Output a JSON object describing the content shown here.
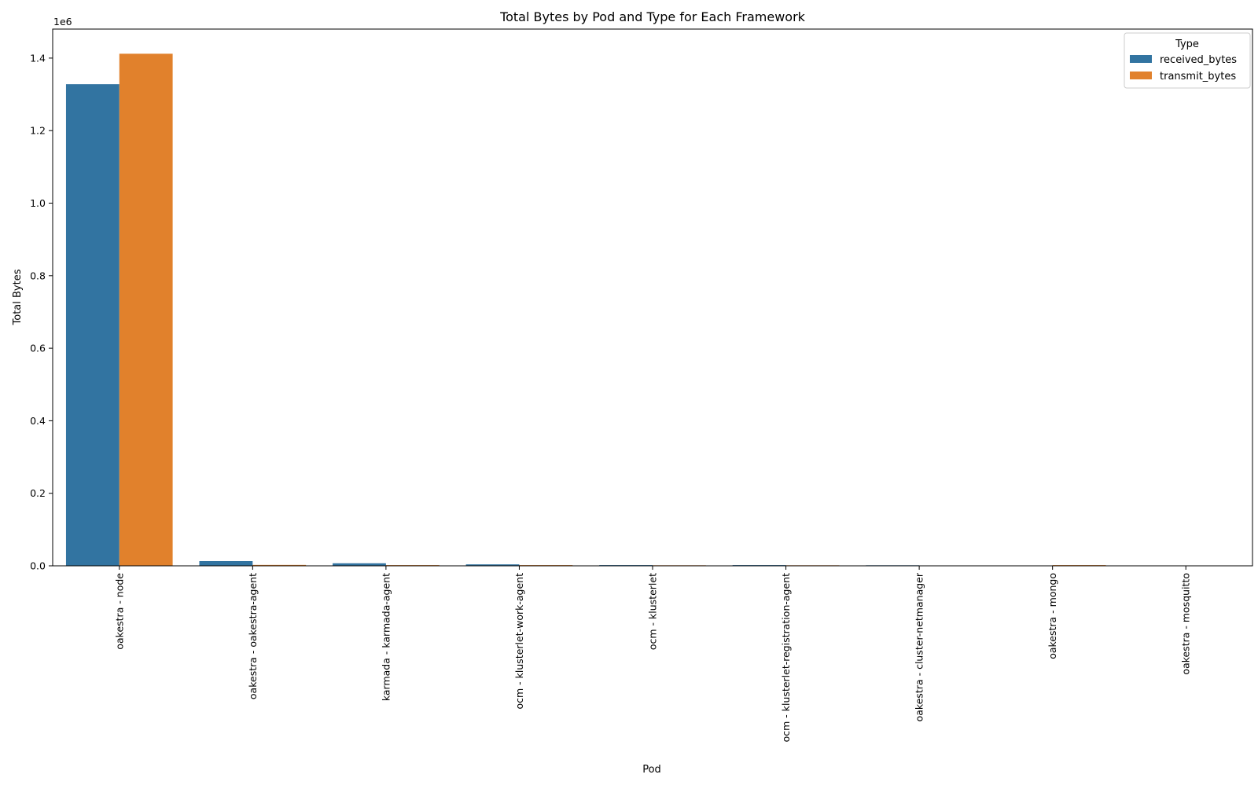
{
  "chart_data": {
    "type": "bar",
    "title": "Total Bytes by Pod and Type for Each Framework",
    "xlabel": "Pod",
    "ylabel": "Total Bytes",
    "y_offset_label": "1e6",
    "y_scale_factor": 1000000,
    "ylim": [
      0,
      1480000
    ],
    "yticks": [
      0,
      200000,
      400000,
      600000,
      800000,
      1000000,
      1200000,
      1400000
    ],
    "ytick_labels": [
      "0.0",
      "0.2",
      "0.4",
      "0.6",
      "0.8",
      "1.0",
      "1.2",
      "1.4"
    ],
    "grid": false,
    "legend": {
      "title": "Type",
      "placement": "top-right"
    },
    "categories": [
      "oakestra - node",
      "oakestra - oakestra-agent",
      "karmada - karmada-agent",
      "ocm - klusterlet-work-agent",
      "ocm - klusterlet",
      "ocm - klusterlet-registration-agent",
      "oakestra - cluster-netmanager",
      "oakestra - mongo",
      "oakestra - mosquitto"
    ],
    "series": [
      {
        "name": "received_bytes",
        "color": "#3274a1",
        "values": [
          1328000,
          13000,
          7000,
          4000,
          2000,
          2000,
          1500,
          300,
          200
        ]
      },
      {
        "name": "transmit_bytes",
        "color": "#e1812c",
        "values": [
          1412000,
          2500,
          2000,
          2000,
          1500,
          1500,
          500,
          2000,
          100
        ]
      }
    ]
  }
}
